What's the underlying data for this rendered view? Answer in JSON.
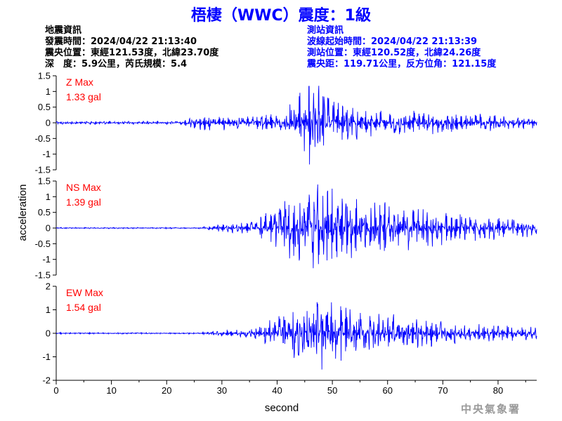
{
  "title": "梧棲（WWC）震度：1級",
  "quake_info": [
    "地震資訊",
    "發震時間：2024/04/22 21:13:40",
    "震央位置：東經121.53度，北緯23.70度",
    "深　度：5.9公里，芮氏規模：5.4"
  ],
  "station_info": [
    "測站資訊",
    "波線起始時間：2024/04/22 21:13:39",
    "測站位置：東經120.52度，北緯24.26度",
    "震央距：119.71公里，反方位角：121.15度"
  ],
  "agency": "中央氣象署",
  "colors": {
    "title": "#0000ff",
    "trace": "#0000ff",
    "max_label": "#ff0000",
    "axis": "#000000"
  },
  "chart_data": {
    "type": "line",
    "xlabel": "second",
    "ylabel": "acceleration",
    "xlim": [
      0,
      87
    ],
    "x_ticks": [
      "0",
      "10",
      "20",
      "30",
      "40",
      "50",
      "60",
      "70",
      "80"
    ],
    "grid": false,
    "panels": [
      {
        "name": "Z",
        "max_title": "Z Max",
        "max_value": "1.33 gal",
        "peak": 1.33,
        "ylim": [
          -1.5,
          1.5
        ],
        "y_ticks": [
          "1.5",
          "1",
          "0.5",
          "0",
          "-0.5",
          "-1",
          "-1.5"
        ],
        "envelope": {
          "times": [
            0,
            23,
            24,
            41,
            43,
            46,
            48,
            52,
            58,
            65,
            75,
            87
          ],
          "amps": [
            0.05,
            0.05,
            0.22,
            0.28,
            0.8,
            1.33,
            1.15,
            0.65,
            0.42,
            0.38,
            0.3,
            0.18
          ]
        }
      },
      {
        "name": "NS",
        "max_title": "NS Max",
        "max_value": "1.39 gal",
        "peak": 1.39,
        "ylim": [
          -1.5,
          1.5
        ],
        "y_ticks": [
          "1.5",
          "1",
          "0.5",
          "0",
          "-0.5",
          "-1",
          "-1.5"
        ],
        "envelope": {
          "times": [
            0,
            26,
            30,
            36,
            40,
            45,
            48,
            52,
            58,
            65,
            75,
            87
          ],
          "amps": [
            0.02,
            0.02,
            0.12,
            0.2,
            0.75,
            1.15,
            1.39,
            1.0,
            0.85,
            0.65,
            0.4,
            0.25
          ]
        }
      },
      {
        "name": "EW",
        "max_title": "EW Max",
        "max_value": "1.54 gal",
        "peak": 1.54,
        "ylim": [
          -2,
          2
        ],
        "y_ticks": [
          "2",
          "1",
          "0",
          "-1",
          "-2"
        ],
        "envelope": {
          "times": [
            0,
            26,
            30,
            36,
            40,
            44,
            48,
            52,
            58,
            65,
            75,
            87
          ],
          "amps": [
            0.03,
            0.03,
            0.14,
            0.22,
            0.7,
            1.3,
            1.54,
            1.2,
            0.9,
            0.65,
            0.4,
            0.3
          ]
        }
      }
    ]
  }
}
